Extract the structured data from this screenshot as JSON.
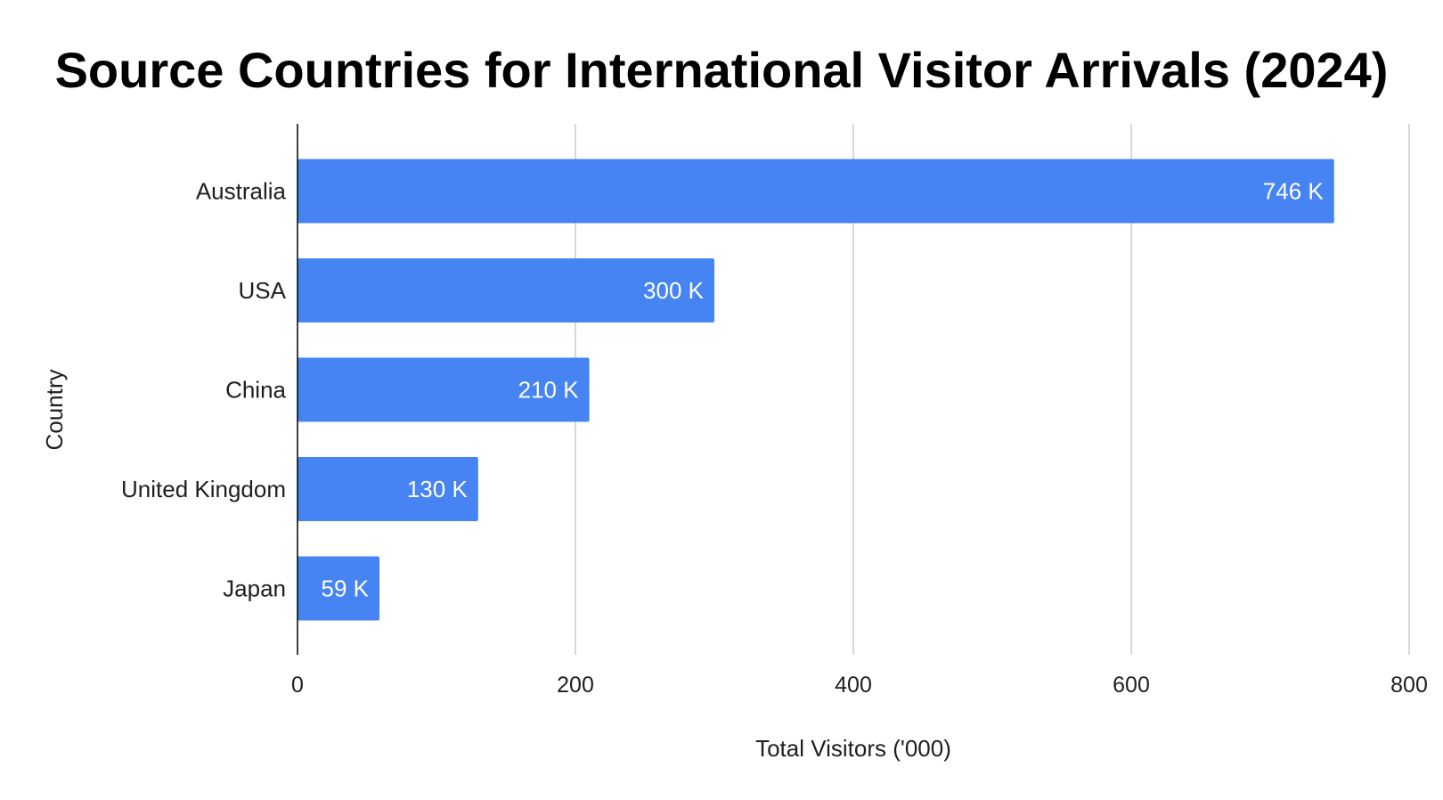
{
  "chart_data": {
    "type": "bar",
    "orientation": "horizontal",
    "title": "Source Countries for International Visitor Arrivals (2024)",
    "xlabel": "Total Visitors ('000)",
    "ylabel": "Country",
    "categories": [
      "Australia",
      "USA",
      "China",
      "United Kingdom",
      "Japan"
    ],
    "values": [
      746,
      300,
      210,
      130,
      59
    ],
    "data_labels": [
      "746 K",
      "300 K",
      "210 K",
      "130 K",
      "59 K"
    ],
    "xlim": [
      0,
      800
    ],
    "xticks": [
      "0",
      "200",
      "400",
      "600",
      "800"
    ],
    "grid": "vertical",
    "legend": "none",
    "colors": {
      "bar": "#4584f2",
      "grid": "#cccccc",
      "axis": "#000000"
    }
  }
}
